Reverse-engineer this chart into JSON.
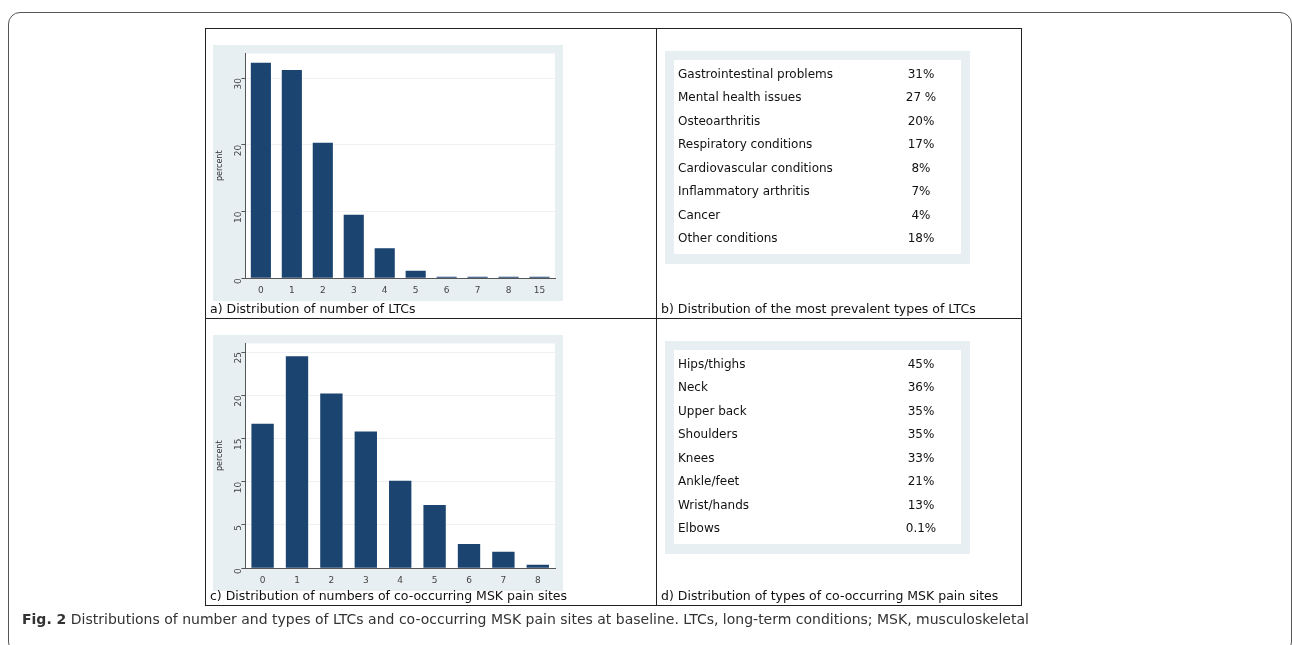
{
  "chart_data": [
    {
      "type": "bar",
      "title": "a) Distribution of number of LTCs",
      "ylabel": "percent",
      "categories": [
        "0",
        "1",
        "2",
        "3",
        "4",
        "5",
        "6",
        "7",
        "8",
        "15"
      ],
      "values": [
        32.3,
        31.2,
        20.3,
        9.5,
        4.5,
        1.1,
        0.2,
        0.2,
        0.2,
        0.2
      ],
      "color": "#1b4470",
      "ylim": [
        0,
        33.7
      ],
      "yticks": [
        0,
        10,
        20,
        30
      ],
      "grid": "y"
    },
    {
      "type": "other",
      "title": "b) Distribution of the most prevalent types of LTCs",
      "categories": [
        "Gastrointestinal problems",
        "Mental health issues",
        "Osteoarthritis",
        "Respiratory conditions",
        "Cardiovascular conditions",
        "Inflammatory arthritis",
        "Cancer",
        "Other conditions"
      ],
      "value_labels": [
        "31%",
        "27 %",
        "20%",
        "17%",
        "8%",
        "7%",
        "4%",
        "18%"
      ]
    },
    {
      "type": "bar",
      "title": "c) Distribution of numbers of co-occurring MSK pain sites",
      "ylabel": "percent",
      "categories": [
        "0",
        "1",
        "2",
        "3",
        "4",
        "5",
        "6",
        "7",
        "8"
      ],
      "values": [
        16.7,
        24.5,
        20.2,
        15.8,
        10.1,
        7.3,
        2.8,
        1.9,
        0.4
      ],
      "color": "#1b4470",
      "ylim": [
        0,
        26
      ],
      "yticks": [
        0,
        5,
        10,
        15,
        20,
        25
      ],
      "grid": "y"
    },
    {
      "type": "other",
      "title": "d) Distribution of types of co-occurring MSK pain sites",
      "categories": [
        "Hips/thighs",
        "Neck",
        "Upper back",
        "Shoulders",
        "Knees",
        "Ankle/feet",
        "Wrist/hands",
        "Elbows"
      ],
      "value_labels": [
        "45%",
        "36%",
        "35%",
        "35%",
        "33%",
        "21%",
        "13%",
        "0.1%"
      ]
    },
    {
      "type": "other",
      "title": "Fig. 2",
      "annotations": [
        "Distributions of number and types of LTCs and co-occurring MSK pain sites at baseline. LTCs, long-term conditions; MSK, musculoskeletal"
      ]
    }
  ]
}
